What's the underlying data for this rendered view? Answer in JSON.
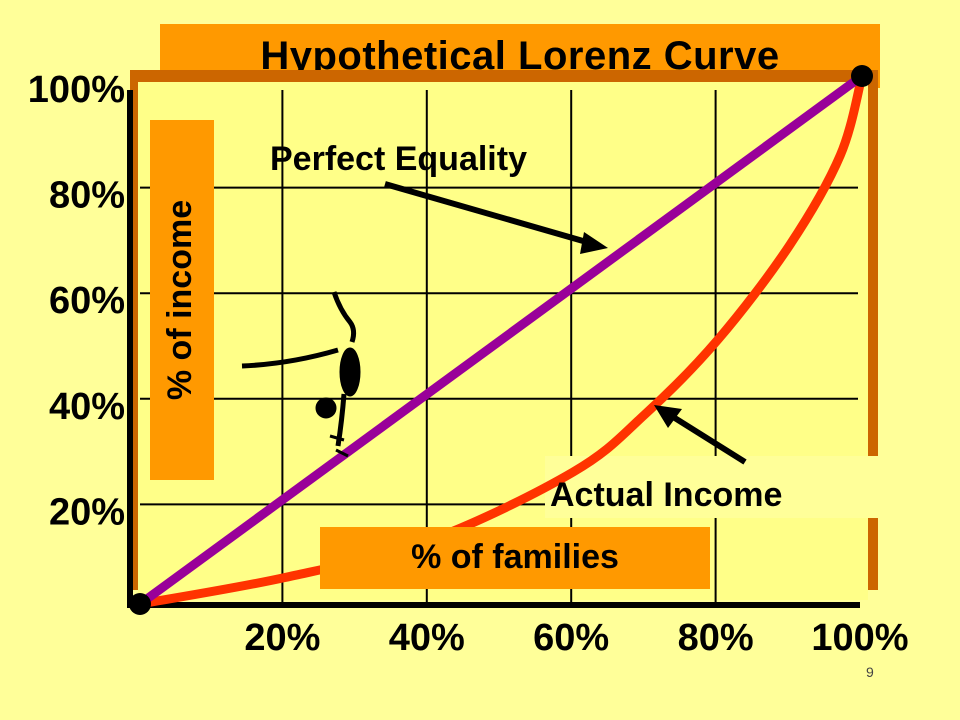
{
  "chart_data": {
    "type": "line",
    "title": "Hypothetical Lorenz Curve",
    "xlabel": "% of families",
    "ylabel": "% of income",
    "x_ticks": [
      "20%",
      "40%",
      "60%",
      "80%",
      "100%"
    ],
    "y_ticks": [
      "20%",
      "40%",
      "60%",
      "80%",
      "100%"
    ],
    "xlim": [
      0,
      100
    ],
    "ylim": [
      0,
      100
    ],
    "grid": true,
    "series": [
      {
        "name": "Perfect Equality",
        "color": "#990099",
        "x": [
          0,
          100
        ],
        "y": [
          0,
          100
        ]
      },
      {
        "name": "Actual Income",
        "color": "#ff3300",
        "x": [
          0,
          20,
          40,
          60,
          70,
          80,
          90,
          97,
          100
        ],
        "y": [
          0,
          5,
          12,
          25,
          36,
          50,
          68,
          85,
          100
        ]
      }
    ],
    "annotations": [
      "Perfect Equality",
      "Actual Income"
    ]
  },
  "slide_number": "9",
  "colors": {
    "background": "#ffff99",
    "plot_fill": "#ffff88",
    "label_box": "#ff9900",
    "shadow": "#cc6600",
    "grid": "#000000",
    "axis": "#000000"
  },
  "icons": {
    "decoration": "gymnast-silhouette-icon"
  }
}
